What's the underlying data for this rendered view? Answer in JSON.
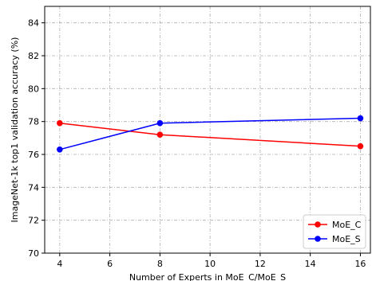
{
  "chart_data": {
    "type": "line",
    "title": "",
    "xlabel": "Number of Experts in MoE_C/MoE_S",
    "ylabel": "ImageNet-1k top1 validation accuracy (%)",
    "x": [
      4,
      8,
      16
    ],
    "xlim": [
      3.4,
      16.4
    ],
    "ylim": [
      70,
      85
    ],
    "xticks": [
      4,
      6,
      8,
      10,
      12,
      14,
      16
    ],
    "yticks": [
      70,
      72,
      74,
      76,
      78,
      80,
      82,
      84
    ],
    "grid": true,
    "legend_position": "lower-right",
    "series": [
      {
        "name": "MoE_C",
        "color": "#ff0000",
        "marker": "circle",
        "values": [
          77.9,
          77.2,
          76.5
        ]
      },
      {
        "name": "MoE_S",
        "color": "#0000ff",
        "marker": "circle",
        "values": [
          76.3,
          77.9,
          78.2
        ]
      }
    ]
  }
}
